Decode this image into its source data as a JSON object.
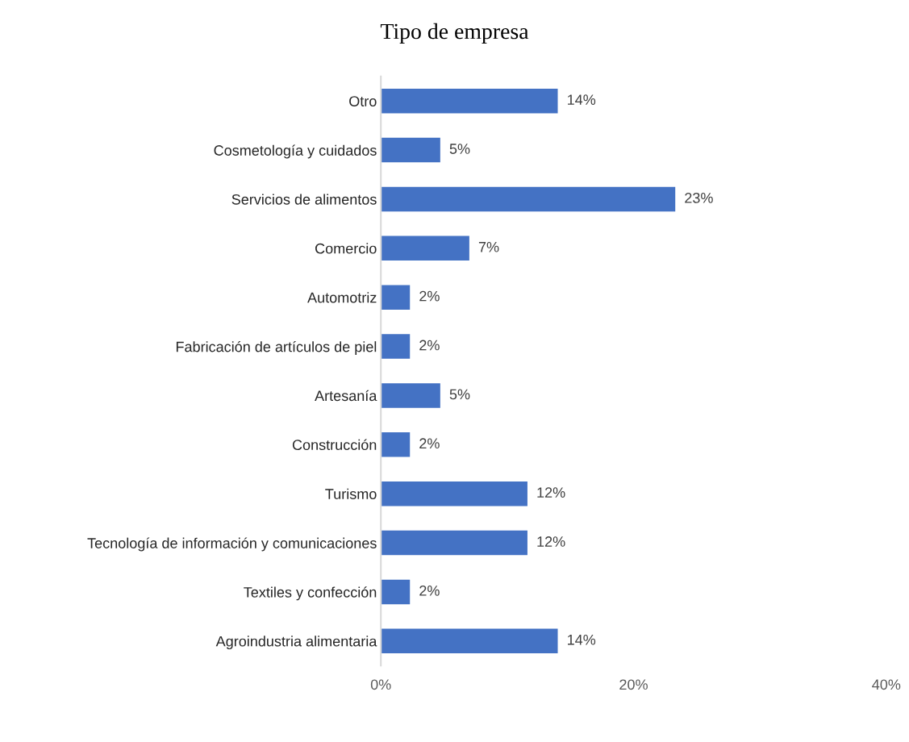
{
  "chart_data": {
    "type": "bar",
    "orientation": "horizontal",
    "title": "Tipo de empresa",
    "categories": [
      "Otro",
      "Cosmetología y cuidados",
      "Servicios de alimentos",
      "Comercio",
      "Automotriz",
      "Fabricación de artículos de piel",
      "Artesanía",
      "Construcción",
      "Turismo",
      "Tecnología de información y comunicaciones",
      "Textiles y confección",
      "Agroindustria alimentaria"
    ],
    "values": [
      14.0,
      4.7,
      23.3,
      7.0,
      2.3,
      2.3,
      4.7,
      2.3,
      11.6,
      11.6,
      2.3,
      14.0
    ],
    "value_labels": [
      "14%",
      "5%",
      "23%",
      "7%",
      "2%",
      "2%",
      "5%",
      "2%",
      "12%",
      "12%",
      "2%",
      "14%"
    ],
    "color": "#4472c4",
    "xlim": [
      0,
      40
    ],
    "xticks": [
      {
        "value": 0,
        "label": "0%"
      },
      {
        "value": 20,
        "label": "20%"
      },
      {
        "value": 40,
        "label": "40%"
      }
    ],
    "grid": false,
    "legend": false
  }
}
